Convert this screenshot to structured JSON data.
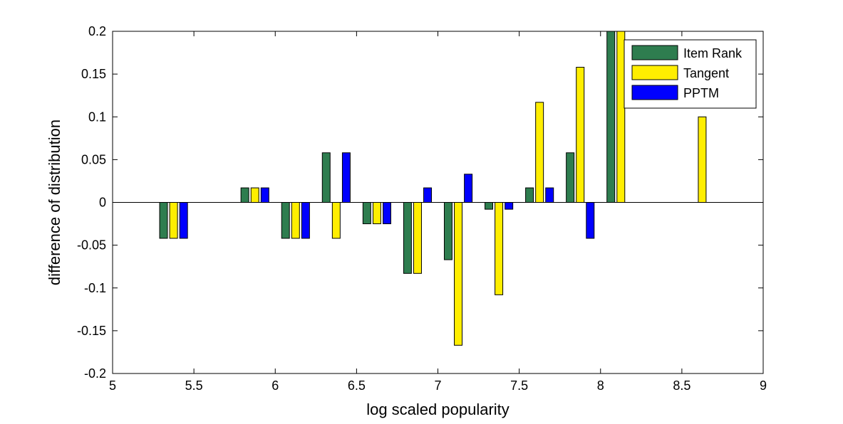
{
  "chart_data": {
    "type": "bar",
    "title": "",
    "xlabel": "log scaled popularity",
    "ylabel": "difference of distribution",
    "xlim": [
      5,
      9
    ],
    "ylim": [
      -0.2,
      0.2
    ],
    "x_ticks": [
      5,
      5.5,
      6,
      6.5,
      7,
      7.5,
      8,
      8.5,
      9
    ],
    "x_tick_labels": [
      "5",
      "5.5",
      "6",
      "6.5",
      "7",
      "7.5",
      "8",
      "8.5",
      "9"
    ],
    "y_ticks": [
      0.2,
      0.15,
      0.1,
      0.05,
      0,
      -0.05,
      -0.1,
      -0.15,
      -0.2
    ],
    "y_tick_labels": [
      "0.2",
      "0.15",
      "0.1",
      "0.05",
      "0",
      "-0.05",
      "-0.1",
      "-0.15",
      "-0.2"
    ],
    "categories": [
      5.375,
      5.875,
      6.125,
      6.375,
      6.625,
      6.875,
      7.125,
      7.375,
      7.625,
      7.875,
      8.125,
      8.625
    ],
    "bar_group_width": 0.185,
    "series": [
      {
        "name": "Item Rank",
        "color": "#2e7d4f",
        "values": [
          -0.042,
          0.017,
          -0.042,
          0.058,
          -0.025,
          -0.083,
          -0.067,
          -0.008,
          0.017,
          0.058,
          0.2,
          0
        ]
      },
      {
        "name": "Tangent",
        "color": "#ffee00",
        "values": [
          -0.042,
          0.017,
          -0.042,
          -0.042,
          -0.025,
          -0.083,
          -0.167,
          -0.108,
          0.117,
          0.158,
          0.2,
          0.1
        ]
      },
      {
        "name": "PPTM",
        "color": "#0000ff",
        "values": [
          -0.042,
          0.017,
          -0.042,
          0.058,
          -0.025,
          0.017,
          0.033,
          -0.008,
          0.017,
          -0.042,
          0,
          0
        ]
      }
    ],
    "legend": {
      "position": "top-right"
    },
    "grid": false,
    "zero_line": true
  }
}
